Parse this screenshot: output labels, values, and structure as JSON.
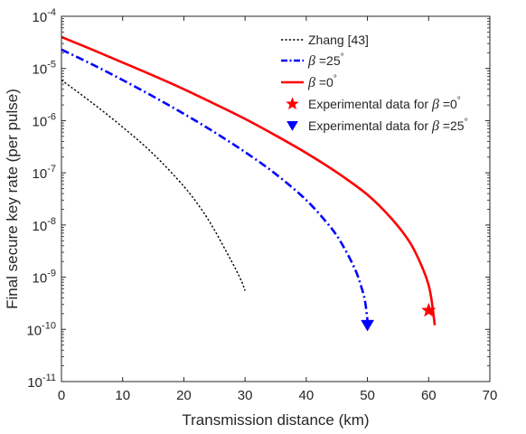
{
  "chart_data": {
    "type": "line",
    "xlabel": "Transmission distance (km)",
    "ylabel": "Final secure key rate (per pulse)",
    "xlim": [
      0,
      70
    ],
    "ylim": [
      1e-11,
      0.0001
    ],
    "yscale": "log",
    "grid": false,
    "legend_position": "top-right",
    "xticks": [
      {
        "v": 0,
        "label": "0"
      },
      {
        "v": 10,
        "label": "10"
      },
      {
        "v": 20,
        "label": "20"
      },
      {
        "v": 30,
        "label": "30"
      },
      {
        "v": 40,
        "label": "40"
      },
      {
        "v": 50,
        "label": "50"
      },
      {
        "v": 60,
        "label": "60"
      },
      {
        "v": 70,
        "label": "70"
      }
    ],
    "yticks": [
      {
        "exp": -11,
        "base": "10",
        "sup": "-11"
      },
      {
        "exp": -10,
        "base": "10",
        "sup": "-10"
      },
      {
        "exp": -9,
        "base": "10",
        "sup": "-9"
      },
      {
        "exp": -8,
        "base": "10",
        "sup": "-8"
      },
      {
        "exp": -7,
        "base": "10",
        "sup": "-7"
      },
      {
        "exp": -6,
        "base": "10",
        "sup": "-6"
      },
      {
        "exp": -5,
        "base": "10",
        "sup": "-5"
      },
      {
        "exp": -4,
        "base": "10",
        "sup": "-4"
      }
    ],
    "series": [
      {
        "name": "Zhang [43]",
        "style": "dotted",
        "color": "#000000",
        "x": [
          0,
          5,
          10,
          15,
          20,
          23,
          25,
          27,
          28.5,
          29.5,
          30
        ],
        "y": [
          6e-06,
          2.2e-06,
          7.5e-07,
          2.3e-07,
          5.5e-08,
          1.9e-08,
          8e-09,
          3e-09,
          1.4e-09,
          8e-10,
          5.5e-10
        ]
      },
      {
        "name_prefix": "β",
        "name_suffix": " =25",
        "name_degree": "°",
        "style": "dashdot",
        "color": "#0000ff",
        "x": [
          0,
          5,
          10,
          15,
          20,
          25,
          30,
          35,
          40,
          44,
          46,
          48,
          49,
          49.6,
          50
        ],
        "y": [
          2.3e-05,
          1.2e-05,
          6e-06,
          2.9e-06,
          1.35e-06,
          6e-07,
          2.5e-07,
          9.5e-08,
          3e-08,
          9e-09,
          4e-09,
          1.4e-09,
          6.5e-10,
          3.5e-10,
          1.5e-10
        ]
      },
      {
        "name_prefix": "β",
        "name_suffix": " =0",
        "name_degree": "°",
        "style": "solid",
        "color": "#ff0000",
        "x": [
          0,
          5,
          10,
          15,
          20,
          25,
          30,
          35,
          40,
          45,
          50,
          54,
          57,
          59,
          60,
          60.5,
          61
        ],
        "y": [
          4e-05,
          2.3e-05,
          1.3e-05,
          7.3e-06,
          4e-06,
          2.1e-06,
          1.08e-06,
          5.2e-07,
          2.4e-07,
          1.02e-07,
          3.8e-08,
          1.3e-08,
          4.5e-09,
          1.5e-09,
          7e-10,
          3.5e-10,
          1.2e-10
        ]
      }
    ],
    "experimental": [
      {
        "label_prefix": "Experimental data for ",
        "label_beta": "β",
        "label_suffix": " =0",
        "label_degree": "°",
        "marker": "star",
        "color": "#ff0000",
        "x": 60,
        "y": 2.3e-10
      },
      {
        "label_prefix": "Experimental data for ",
        "label_beta": "β",
        "label_suffix": " =25",
        "label_degree": "°",
        "marker": "triangle-down",
        "color": "#0000ff",
        "x": 50,
        "y": 1.2e-10
      }
    ]
  }
}
